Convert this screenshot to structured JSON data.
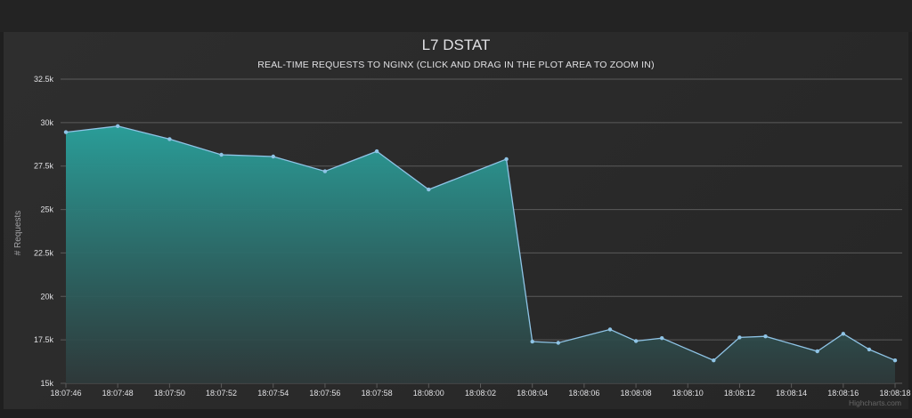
{
  "chart_data": {
    "type": "area",
    "title": "L7 DSTAT",
    "subtitle": "REAL-TIME REQUESTS TO NGINX (CLICK AND DRAG IN THE PLOT AREA TO ZOOM IN)",
    "xlabel": "",
    "ylabel": "# Requests",
    "ylim": [
      15000,
      32500
    ],
    "y_ticks": [
      15000,
      17500,
      20000,
      22500,
      25000,
      27500,
      30000,
      32500
    ],
    "y_tick_labels": [
      "15k",
      "17.5k",
      "20k",
      "22.5k",
      "25k",
      "27.5k",
      "30k",
      "32.5k"
    ],
    "x_range": [
      0,
      32
    ],
    "x_tick_values": [
      0,
      2,
      4,
      6,
      8,
      10,
      12,
      14,
      16,
      18,
      20,
      22,
      24,
      26,
      28,
      30,
      32
    ],
    "x_tick_labels": [
      "18:07:46",
      "18:07:48",
      "18:07:50",
      "18:07:52",
      "18:07:54",
      "18:07:56",
      "18:07:58",
      "18:08:00",
      "18:08:02",
      "18:08:04",
      "18:08:06",
      "18:08:08",
      "18:08:10",
      "18:08:12",
      "18:08:14",
      "18:08:16",
      "18:08:18"
    ],
    "grid": true,
    "legend": "none",
    "series": [
      {
        "x": [
          0,
          2,
          4,
          6,
          8,
          10,
          12,
          14,
          17,
          18,
          19,
          21,
          22,
          23,
          25,
          26,
          27,
          29,
          30,
          31,
          32
        ],
        "values": [
          29450,
          29800,
          29050,
          28150,
          28050,
          27200,
          28350,
          26150,
          27900,
          17400,
          17330,
          18100,
          17430,
          17600,
          16320,
          17640,
          17700,
          16840,
          17850,
          16950,
          16320
        ]
      }
    ],
    "colors": {
      "line": "#8fc4e6",
      "fill_top": "#2a9d98",
      "fill_bottom": "#2e3a3b",
      "grid": "#5b5b5b",
      "background": "#2c2c2c"
    },
    "credits": "Highcharts.com"
  }
}
